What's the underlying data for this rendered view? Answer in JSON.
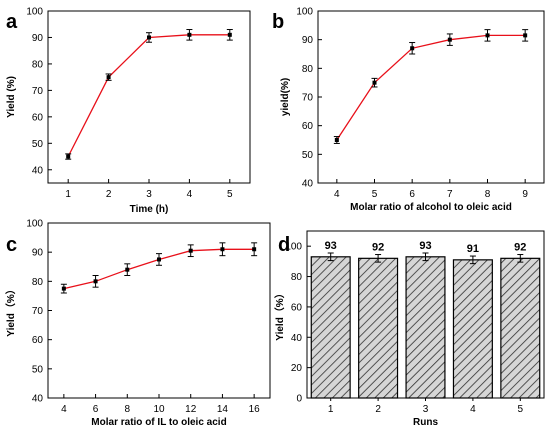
{
  "chart_data": [
    {
      "panel": "a",
      "type": "line",
      "x": [
        1,
        2,
        3,
        4,
        5
      ],
      "series": [
        {
          "values": [
            45,
            75,
            90,
            91,
            91
          ],
          "errors": [
            1,
            1.2,
            1.8,
            2,
            2
          ]
        }
      ],
      "xlabel": "Time (h)",
      "ylabel": "Yield (%)",
      "xticks": [
        "1",
        "2",
        "3",
        "4",
        "5"
      ],
      "xlim": [
        0.5,
        5.5
      ],
      "yticks": [
        40,
        50,
        60,
        70,
        80,
        90,
        100
      ],
      "ylim": [
        35,
        100
      ],
      "line_color": "#e8101a"
    },
    {
      "panel": "b",
      "type": "line",
      "x": [
        4,
        5,
        6,
        7,
        8,
        9
      ],
      "series": [
        {
          "values": [
            55,
            75,
            87,
            90,
            91.5,
            91.5
          ],
          "errors": [
            1.2,
            1.5,
            2,
            2,
            2,
            2
          ]
        }
      ],
      "xlabel": "Molar ratio of alcohol to oleic acid",
      "ylabel": "yield(%)",
      "xticks": [
        "4",
        "5",
        "6",
        "7",
        "8",
        "9"
      ],
      "xlim": [
        3.5,
        9.5
      ],
      "yticks": [
        40,
        50,
        60,
        70,
        80,
        90,
        100
      ],
      "ylim": [
        40,
        100
      ],
      "line_color": "#e8101a"
    },
    {
      "panel": "c",
      "type": "line",
      "x": [
        4,
        6,
        8,
        10,
        12,
        14,
        16
      ],
      "series": [
        {
          "values": [
            77.5,
            80,
            84,
            87.5,
            90.5,
            91,
            91
          ],
          "errors": [
            1.5,
            2,
            2,
            2,
            2,
            2.2,
            2.2
          ]
        }
      ],
      "xlabel": "Molar ratio of IL to oleic acid",
      "ylabel": "Yield（%）",
      "xticks": [
        "4",
        "6",
        "8",
        "10",
        "12",
        "14",
        "16"
      ],
      "xlim": [
        3,
        17
      ],
      "yticks": [
        40,
        50,
        60,
        70,
        80,
        90,
        100
      ],
      "ylim": [
        40,
        100
      ],
      "line_color": "#e8101a"
    },
    {
      "panel": "d",
      "type": "bar",
      "categories": [
        "1",
        "2",
        "3",
        "4",
        "5"
      ],
      "values": [
        93,
        92,
        93,
        91,
        92
      ],
      "errors": [
        2.5,
        2.5,
        2.5,
        2.5,
        2.5
      ],
      "data_labels": [
        "93",
        "92",
        "93",
        "91",
        "92"
      ],
      "xlabel": "Runs",
      "ylabel": "Yield（%）",
      "yticks": [
        0,
        20,
        40,
        60,
        80,
        100
      ],
      "ylim": [
        0,
        110
      ],
      "bar_fill": "#c8c8c8",
      "hatch": true
    }
  ]
}
